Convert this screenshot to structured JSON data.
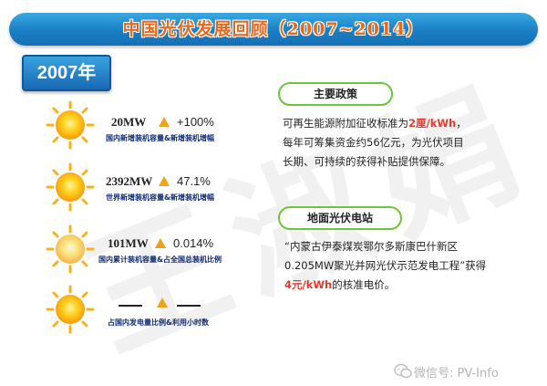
{
  "header": {
    "title": "中国光伏发展回顾（2007~2014）"
  },
  "year_badge": "2007年",
  "stats": [
    {
      "value": "20MW",
      "change": "+100%",
      "caption": "国内新增装机容量&新增装机增幅"
    },
    {
      "value": "2392MW",
      "change": "47.1%",
      "caption": "世界新增装机容量&新增装机增幅"
    },
    {
      "value": "101MW",
      "change": "0.014%",
      "caption": "国内累计装机容量&占全国总装机比例"
    },
    {
      "value": "",
      "change": "",
      "caption": "占国内发电量比例&利用小时数"
    }
  ],
  "policy": {
    "tag": "主要政策",
    "line1_pre": "可再生能源附加征收标准为",
    "line1_highlight": "2厘/kWh",
    "line1_post": "，",
    "line2": "每年可筹集资金约56亿元，为光伏项目",
    "line3": "长期、可持续的获得补贴提供保障。"
  },
  "station": {
    "tag": "地面光伏电站",
    "line1": "“内蒙古伊泰煤炭鄂尔多斯康巴什新区",
    "line2": "0.205MW聚光并网光伏示范发电工程”获得",
    "line3_highlight": "4元/kWh",
    "line3_post": "的核准电价。"
  },
  "watermark": "王淑娟",
  "footer": {
    "wechat_label": "微信号: PV-Info"
  },
  "colors": {
    "title_bar": "#1a7fc4",
    "title_text": "#e66a1e",
    "tag_border": "#6cc53a",
    "highlight": "#e03a2e",
    "caption": "#0e2a78",
    "triangle": "#f0a21a"
  }
}
